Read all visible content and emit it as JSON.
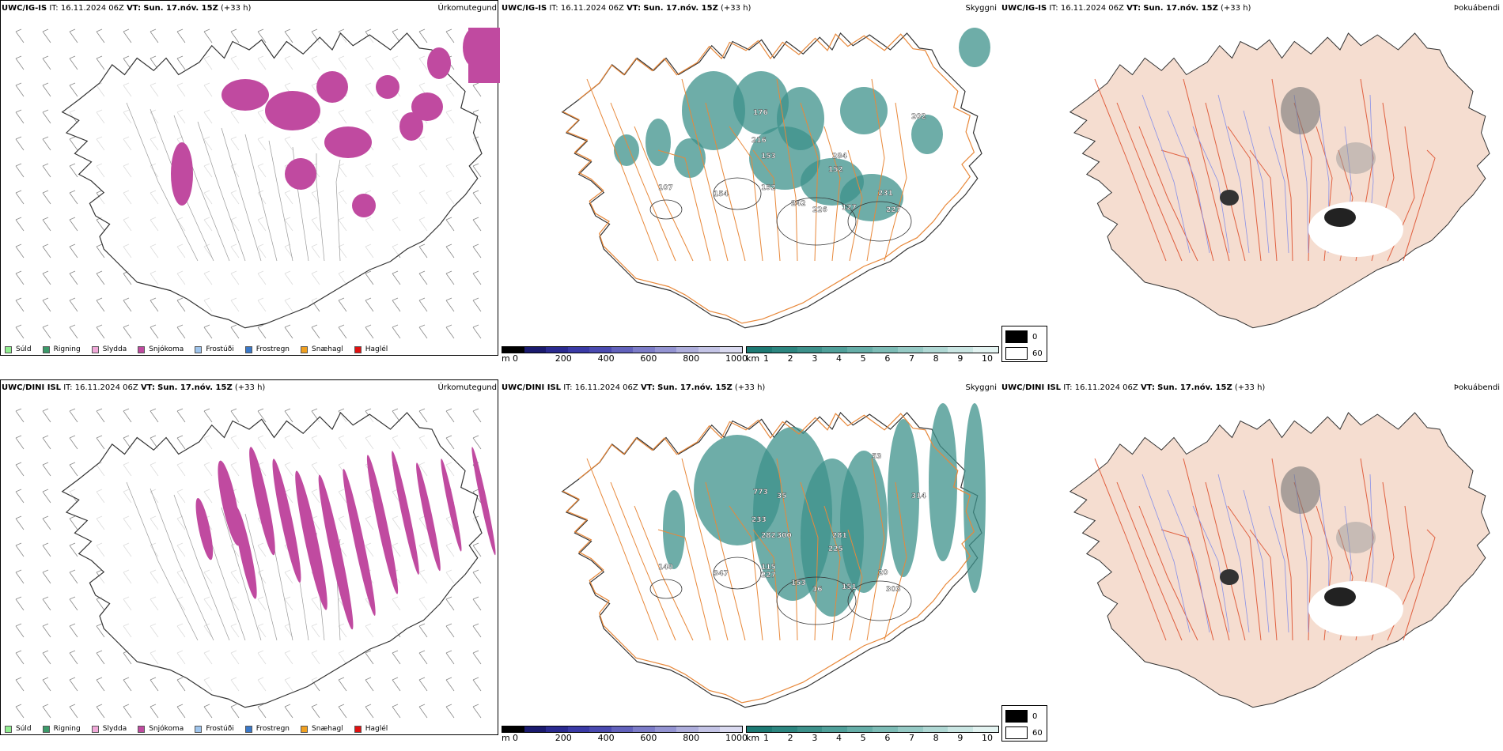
{
  "panels": [
    {
      "id": "r1c1",
      "model": "UWC/IG-IS",
      "it_label": "IT:",
      "it": "16.11.2024 06Z",
      "vt_label": "VT:",
      "vt": "Sun. 17.nóv. 15Z",
      "offset": "(+33 h)",
      "param": "Úrkomutegund"
    },
    {
      "id": "r1c2",
      "model": "UWC/IG-IS",
      "it_label": "IT:",
      "it": "16.11.2024 06Z",
      "vt_label": "VT:",
      "vt": "Sun. 17.nóv. 15Z",
      "offset": "(+33 h)",
      "param": "Skyggni"
    },
    {
      "id": "r1c3",
      "model": "UWC/IG-IS",
      "it_label": "IT:",
      "it": "16.11.2024 06Z",
      "vt_label": "",
      "vt": "",
      "offset": "",
      "param": "Þokuábendi"
    },
    {
      "id": "r2c1",
      "model": "UWC/DINI ISL",
      "it_label": "IT:",
      "it": "16.11.2024 06Z",
      "vt_label": "VT:",
      "vt": "Sun. 17.nóv. 15Z",
      "offset": "(+33 h)",
      "param": "Úrkomutegund"
    },
    {
      "id": "r2c2",
      "model": "UWC/DINI ISL",
      "it_label": "IT:",
      "it": "16.11.2024 06Z",
      "vt_label": "VT:",
      "vt": "Sun. 17.nóv. 15Z",
      "offset": "(+33 h)",
      "param": "Skyggni"
    },
    {
      "id": "r2c3",
      "model": "UWC/DINI ISL",
      "it_label": "IT:",
      "it": "16.11.2024 06Z",
      "vt_label": "VT:",
      "vt": "Sun. 17.nóv. 15Z",
      "offset": "(+33 h)",
      "param": "Þokuábendi"
    }
  ],
  "precip_legend": [
    {
      "label": "Súld",
      "color": "#90ee90"
    },
    {
      "label": "Rigning",
      "color": "#3c9a6a"
    },
    {
      "label": "Slydda",
      "color": "#f0a8d8"
    },
    {
      "label": "Snjókoma",
      "color": "#c04aa0"
    },
    {
      "label": "Frostúði",
      "color": "#9ec4ec"
    },
    {
      "label": "Frostregn",
      "color": "#3a78c8"
    },
    {
      "label": "Snæhagl",
      "color": "#f0a020"
    },
    {
      "label": "Haglél",
      "color": "#e01010"
    }
  ],
  "elev_bar": {
    "unit": "m",
    "ticks": [
      "0",
      "200",
      "400",
      "600",
      "800",
      "1000"
    ],
    "colors": [
      "#000000",
      "#1a1a6e",
      "#2a2a90",
      "#3a3aa6",
      "#4a4ab0",
      "#6262bc",
      "#7c7cc8",
      "#9494d2",
      "#aeaedc",
      "#c4c4e6",
      "#dadaf0"
    ]
  },
  "vis_bar": {
    "unit": "km",
    "ticks": [
      "1",
      "2",
      "3",
      "4",
      "5",
      "6",
      "7",
      "8",
      "9",
      "10"
    ],
    "colors": [
      "#1d7a74",
      "#2c8680",
      "#3d918b",
      "#50a09a",
      "#66aea8",
      "#7dbcb6",
      "#96cac5",
      "#b0d8d4",
      "#cae6e3",
      "#e3f3f1"
    ]
  },
  "fog_legend": [
    "0",
    "60"
  ],
  "vis_labels_top": [
    "176",
    "216",
    "153",
    "284",
    "152",
    "242",
    "226",
    "127",
    "231",
    "227",
    "202",
    "152",
    "154",
    "107"
  ],
  "vis_labels_bottom": [
    "773",
    "233",
    "282",
    "281",
    "225",
    "153",
    "16",
    "151",
    "20",
    "303",
    "314",
    "115",
    "347",
    "140",
    "53",
    "35",
    "300",
    "227"
  ]
}
